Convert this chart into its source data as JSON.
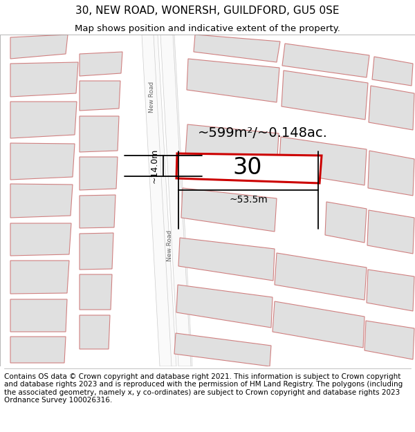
{
  "title": "30, NEW ROAD, WONERSH, GUILDFORD, GU5 0SE",
  "subtitle": "Map shows position and indicative extent of the property.",
  "footer": "Contains OS data © Crown copyright and database right 2021. This information is subject to Crown copyright and database rights 2023 and is reproduced with the permission of HM Land Registry. The polygons (including the associated geometry, namely x, y co-ordinates) are subject to Crown copyright and database rights 2023 Ordnance Survey 100026316.",
  "highlight_color": "#cc0000",
  "road_label": "New Road",
  "plot_number": "30",
  "area_label": "~599m²/~0.148ac.",
  "width_label": "~53.5m",
  "height_label": "~14.0m",
  "bg_color": "#f2f2f2",
  "building_face": "#e0e0e0",
  "building_edge": "#d08080",
  "road_face": "#fafafa",
  "road_edge": "#cccccc",
  "title_fontsize": 11,
  "subtitle_fontsize": 9.5,
  "footer_fontsize": 7.5,
  "number_fontsize": 24,
  "area_fontsize": 14,
  "meas_fontsize": 10
}
